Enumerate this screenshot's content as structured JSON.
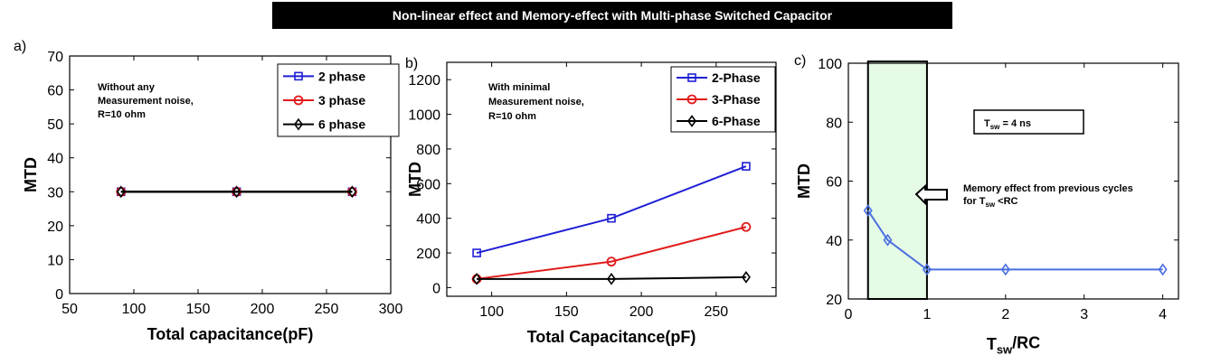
{
  "title": "Non-linear effect and Memory-effect with Multi-phase Switched Capacitor",
  "colors": {
    "blue": "#1f1fd6",
    "red": "#e01b1b",
    "black": "#000000",
    "light_blue": "#4a6fe0",
    "shade": "#e6fbe6"
  },
  "chart_data": [
    {
      "panel_label": "a)",
      "type": "line",
      "xlabel": "Total capacitance(pF)",
      "ylabel": "MTD",
      "xlim": [
        50,
        300
      ],
      "ylim": [
        0,
        70
      ],
      "xticks": [
        50,
        100,
        150,
        200,
        250,
        300
      ],
      "yticks": [
        0,
        10,
        20,
        30,
        40,
        50,
        60,
        70
      ],
      "annotation": [
        "Without any",
        "Measurement noise,",
        "R=10 ohm"
      ],
      "legend_position": "top-right",
      "x": [
        90,
        180,
        270
      ],
      "series": [
        {
          "name": "2 phase",
          "values": [
            30,
            30,
            30
          ],
          "color": "#1f1fd6",
          "marker": "square"
        },
        {
          "name": "3 phase",
          "values": [
            30,
            30,
            30
          ],
          "color": "#e01b1b",
          "marker": "circle"
        },
        {
          "name": "6 phase",
          "values": [
            30,
            30,
            30
          ],
          "color": "#000000",
          "marker": "diamond"
        }
      ]
    },
    {
      "panel_label": "b)",
      "type": "line",
      "xlabel": "Total Capacitance(pF)",
      "ylabel": "MTD",
      "xlim": [
        70,
        290
      ],
      "ylim": [
        -50,
        1300
      ],
      "xticks": [
        100,
        150,
        200,
        250
      ],
      "yticks": [
        0,
        200,
        400,
        600,
        800,
        1000,
        1200
      ],
      "annotation": [
        "With minimal",
        "Measurement noise,",
        "R=10  ohm"
      ],
      "legend_position": "top-right",
      "x": [
        90,
        180,
        270
      ],
      "series": [
        {
          "name": "2-Phase",
          "values": [
            200,
            400,
            700
          ],
          "color": "#1f1fd6",
          "marker": "square"
        },
        {
          "name": "3-Phase",
          "values": [
            50,
            150,
            350
          ],
          "color": "#e01b1b",
          "marker": "circle"
        },
        {
          "name": "6-Phase",
          "values": [
            50,
            50,
            60
          ],
          "color": "#000000",
          "marker": "diamond"
        }
      ]
    },
    {
      "panel_label": "c)",
      "type": "line",
      "xlabel": "T_sw/RC",
      "ylabel": "MTD",
      "xlim": [
        0,
        4.2
      ],
      "ylim": [
        20,
        100
      ],
      "xticks": [
        0,
        1,
        2,
        3,
        4
      ],
      "yticks": [
        20,
        40,
        60,
        80,
        100
      ],
      "shaded_region_x": [
        0.25,
        1
      ],
      "info_box": "T_sw = 4 ns",
      "arrow_annotation": [
        "Memory effect from previous cycles",
        "for T_sw  <RC"
      ],
      "x": [
        0.25,
        0.5,
        1,
        2,
        4
      ],
      "series": [
        {
          "values": [
            50,
            40,
            30,
            30,
            30
          ],
          "color": "#4a6fe0",
          "marker": "diamond"
        }
      ]
    }
  ]
}
